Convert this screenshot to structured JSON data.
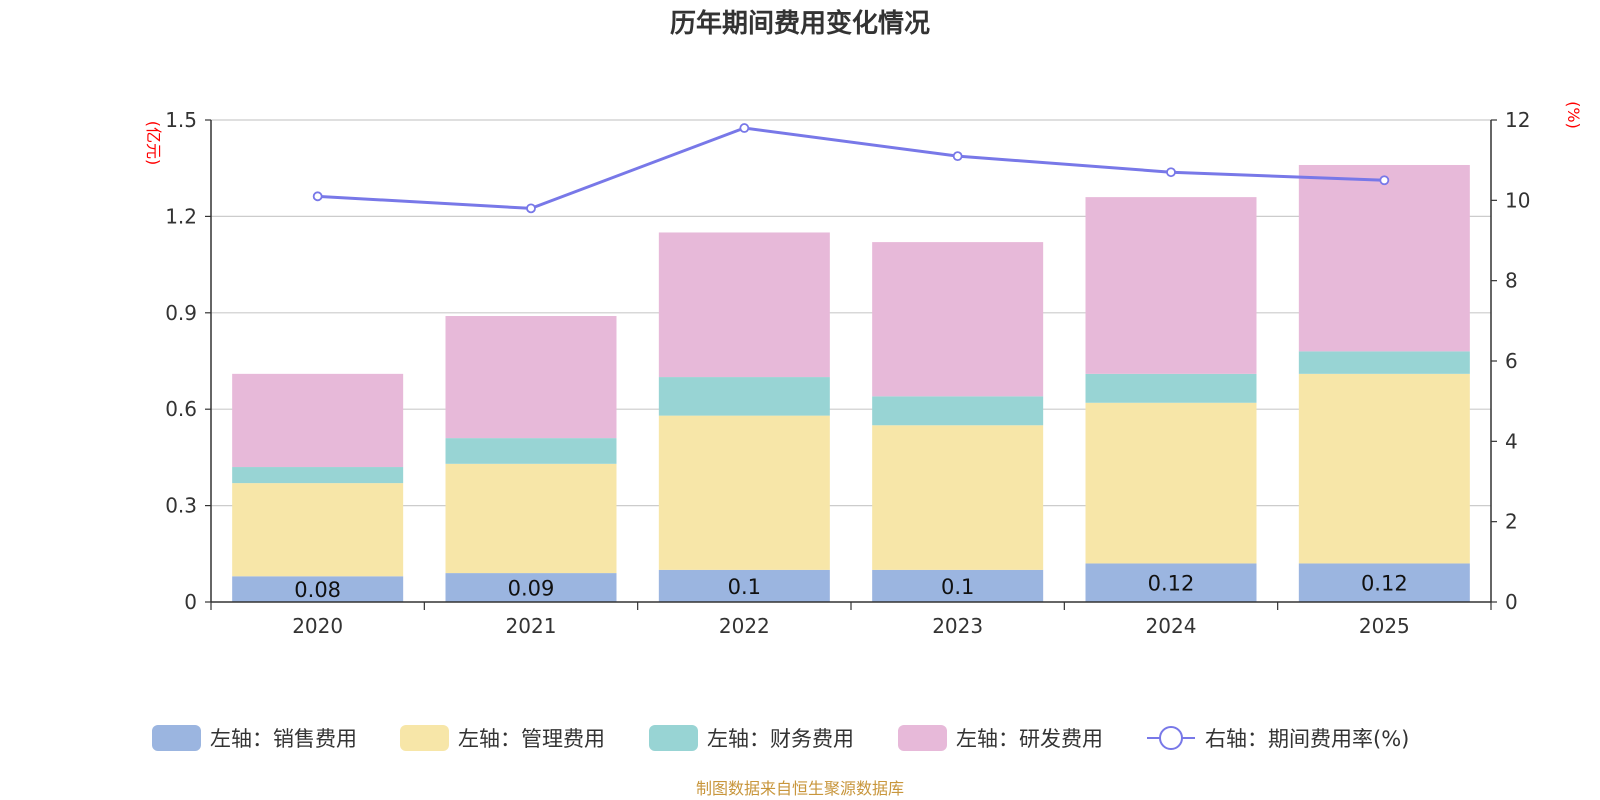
{
  "chart_data": {
    "type": "bar",
    "stacked": true,
    "title": "历年期间费用变化情况",
    "categories": [
      "2020",
      "2021",
      "2022",
      "2023",
      "2024",
      "2025"
    ],
    "left_axis": {
      "unit": "(亿元)",
      "ylim": [
        0,
        1.5
      ],
      "ticks": [
        "0",
        "0.3",
        "0.6",
        "0.9",
        "1.2",
        "1.5"
      ],
      "tick_values": [
        0,
        0.3,
        0.6,
        0.9,
        1.2,
        1.5
      ]
    },
    "right_axis": {
      "unit": "(%)",
      "ylim": [
        0,
        12
      ],
      "ticks": [
        "0",
        "2",
        "4",
        "6",
        "8",
        "10",
        "12"
      ],
      "tick_values": [
        0,
        2,
        4,
        6,
        8,
        10,
        12
      ]
    },
    "series": [
      {
        "name": "左轴：销售费用",
        "axis": "left",
        "color": "#9bb5e0",
        "values": [
          0.08,
          0.09,
          0.1,
          0.1,
          0.12,
          0.12
        ],
        "labels": [
          "0.08",
          "0.09",
          "0.1",
          "0.1",
          "0.12",
          "0.12"
        ]
      },
      {
        "name": "左轴：管理费用",
        "axis": "left",
        "color": "#f7e6a8",
        "values": [
          0.29,
          0.34,
          0.48,
          0.45,
          0.5,
          0.59
        ]
      },
      {
        "name": "左轴：财务费用",
        "axis": "left",
        "color": "#98d4d4",
        "values": [
          0.05,
          0.08,
          0.12,
          0.09,
          0.09,
          0.07
        ]
      },
      {
        "name": "左轴：研发费用",
        "axis": "left",
        "color": "#e7b9d9",
        "values": [
          0.29,
          0.38,
          0.45,
          0.48,
          0.55,
          0.58
        ]
      },
      {
        "name": "右轴：期间费用率(%)",
        "axis": "right",
        "type": "line",
        "color": "#7878e8",
        "values": [
          10.1,
          9.8,
          11.8,
          11.1,
          10.7,
          10.5
        ]
      }
    ],
    "grid": true,
    "legend_position": "bottom"
  },
  "source": "制图数据来自恒生聚源数据库"
}
